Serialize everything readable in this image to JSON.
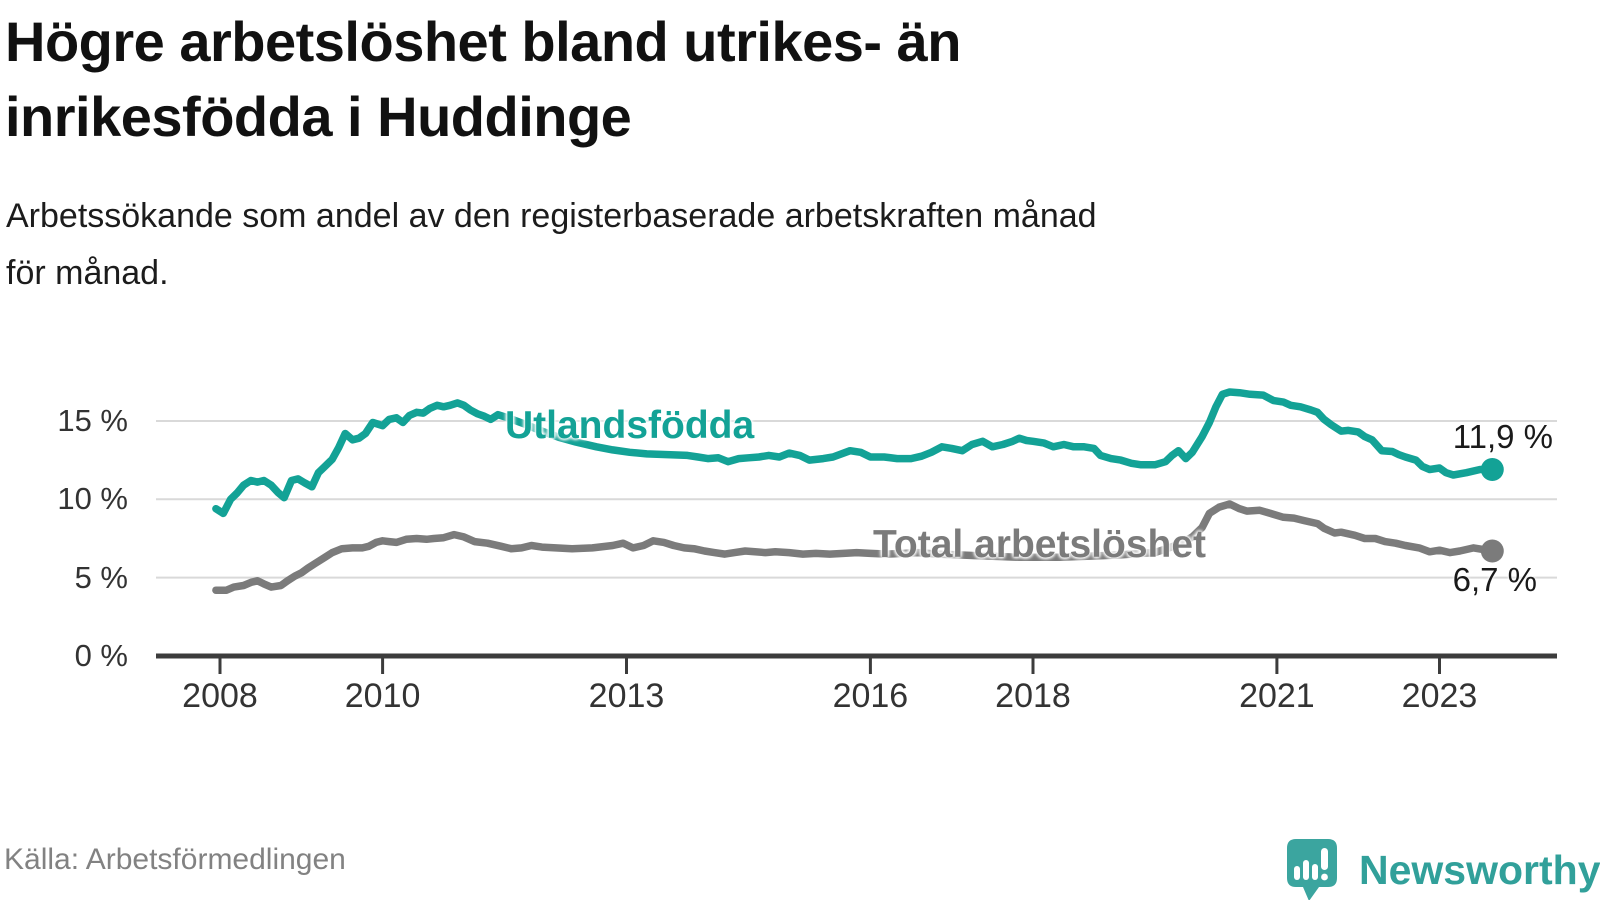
{
  "header": {
    "title_line1": "Högre arbetslöshet bland utrikes- än",
    "title_line2": "inrikesfödda i Huddinge",
    "subtitle_line1": "Arbetssökande som andel av den registerbaserade arbetskraften månad",
    "subtitle_line2": "för månad."
  },
  "footer": {
    "source": "Källa: Arbetsförmedlingen",
    "brand": "Newsworthy",
    "brand_icon": "newsworthy-speech-bubble-bar-chart",
    "brand_color": "#31a09a"
  },
  "chart_data": {
    "type": "line",
    "title": "Högre arbetslöshet bland utrikes- än inrikesfödda i Huddinge",
    "subtitle": "Arbetssökande som andel av den registerbaserade arbetskraften månad för månad.",
    "grid": "horizontal",
    "background": "#ffffff",
    "x_axis": {
      "unit": "year",
      "ticks": [
        2008,
        2010,
        2013,
        2016,
        2018,
        2021,
        2023
      ],
      "labels": [
        "2008",
        "2010",
        "2013",
        "2016",
        "2018",
        "2021",
        "2023"
      ],
      "range": [
        2007.8,
        2023.9
      ]
    },
    "y_axis": {
      "unit": "%",
      "ticks": [
        0,
        5,
        10,
        15
      ],
      "labels": [
        "0 %",
        "5 %",
        "10 %",
        "15 %"
      ],
      "range": [
        0,
        17.6
      ]
    },
    "series": [
      {
        "id": "utlandsfodda",
        "name": "Utlandsfödda",
        "color": "#13a296",
        "end_value": 11.9,
        "end_label": "11,9 %",
        "points": [
          [
            2007.95,
            9.4
          ],
          [
            2008.04,
            9.1
          ],
          [
            2008.13,
            10.0
          ],
          [
            2008.21,
            10.4
          ],
          [
            2008.29,
            10.9
          ],
          [
            2008.38,
            11.2
          ],
          [
            2008.46,
            11.1
          ],
          [
            2008.54,
            11.2
          ],
          [
            2008.63,
            10.9
          ],
          [
            2008.71,
            10.45
          ],
          [
            2008.79,
            10.1
          ],
          [
            2008.88,
            11.2
          ],
          [
            2008.96,
            11.3
          ],
          [
            2009.04,
            11.05
          ],
          [
            2009.13,
            10.8
          ],
          [
            2009.21,
            11.7
          ],
          [
            2009.29,
            12.1
          ],
          [
            2009.38,
            12.55
          ],
          [
            2009.46,
            13.3
          ],
          [
            2009.54,
            14.2
          ],
          [
            2009.63,
            13.8
          ],
          [
            2009.71,
            13.9
          ],
          [
            2009.79,
            14.2
          ],
          [
            2009.88,
            14.9
          ],
          [
            2010.0,
            14.7
          ],
          [
            2010.08,
            15.1
          ],
          [
            2010.17,
            15.2
          ],
          [
            2010.25,
            14.9
          ],
          [
            2010.33,
            15.35
          ],
          [
            2010.42,
            15.55
          ],
          [
            2010.5,
            15.5
          ],
          [
            2010.58,
            15.8
          ],
          [
            2010.67,
            16.0
          ],
          [
            2010.75,
            15.9
          ],
          [
            2010.83,
            16.0
          ],
          [
            2010.92,
            16.15
          ],
          [
            2011.0,
            16.0
          ],
          [
            2011.08,
            15.7
          ],
          [
            2011.17,
            15.45
          ],
          [
            2011.25,
            15.3
          ],
          [
            2011.33,
            15.1
          ],
          [
            2011.42,
            15.4
          ],
          [
            2011.54,
            15.2
          ],
          [
            2011.75,
            14.8
          ],
          [
            2011.96,
            14.35
          ],
          [
            2012.17,
            13.95
          ],
          [
            2012.38,
            13.65
          ],
          [
            2012.63,
            13.35
          ],
          [
            2012.83,
            13.15
          ],
          [
            2013.04,
            13.0
          ],
          [
            2013.25,
            12.9
          ],
          [
            2013.5,
            12.85
          ],
          [
            2013.75,
            12.8
          ],
          [
            2013.88,
            12.7
          ],
          [
            2014.0,
            12.6
          ],
          [
            2014.13,
            12.65
          ],
          [
            2014.25,
            12.4
          ],
          [
            2014.38,
            12.6
          ],
          [
            2014.5,
            12.65
          ],
          [
            2014.63,
            12.7
          ],
          [
            2014.75,
            12.8
          ],
          [
            2014.88,
            12.7
          ],
          [
            2015.0,
            12.95
          ],
          [
            2015.13,
            12.8
          ],
          [
            2015.25,
            12.5
          ],
          [
            2015.42,
            12.6
          ],
          [
            2015.54,
            12.7
          ],
          [
            2015.75,
            13.1
          ],
          [
            2015.88,
            13.0
          ],
          [
            2016.0,
            12.7
          ],
          [
            2016.17,
            12.7
          ],
          [
            2016.33,
            12.6
          ],
          [
            2016.5,
            12.6
          ],
          [
            2016.63,
            12.75
          ],
          [
            2016.75,
            13.0
          ],
          [
            2016.88,
            13.35
          ],
          [
            2017.0,
            13.25
          ],
          [
            2017.13,
            13.1
          ],
          [
            2017.25,
            13.5
          ],
          [
            2017.38,
            13.7
          ],
          [
            2017.5,
            13.35
          ],
          [
            2017.63,
            13.5
          ],
          [
            2017.75,
            13.7
          ],
          [
            2017.83,
            13.9
          ],
          [
            2017.92,
            13.75
          ],
          [
            2018.0,
            13.7
          ],
          [
            2018.13,
            13.6
          ],
          [
            2018.25,
            13.35
          ],
          [
            2018.38,
            13.5
          ],
          [
            2018.5,
            13.35
          ],
          [
            2018.63,
            13.35
          ],
          [
            2018.75,
            13.25
          ],
          [
            2018.83,
            12.8
          ],
          [
            2018.96,
            12.6
          ],
          [
            2019.08,
            12.5
          ],
          [
            2019.21,
            12.3
          ],
          [
            2019.33,
            12.2
          ],
          [
            2019.5,
            12.2
          ],
          [
            2019.63,
            12.4
          ],
          [
            2019.71,
            12.8
          ],
          [
            2019.79,
            13.1
          ],
          [
            2019.88,
            12.6
          ],
          [
            2019.96,
            13.0
          ],
          [
            2020.08,
            14.0
          ],
          [
            2020.17,
            14.9
          ],
          [
            2020.25,
            15.9
          ],
          [
            2020.33,
            16.7
          ],
          [
            2020.42,
            16.85
          ],
          [
            2020.54,
            16.8
          ],
          [
            2020.67,
            16.7
          ],
          [
            2020.83,
            16.65
          ],
          [
            2020.96,
            16.3
          ],
          [
            2021.08,
            16.2
          ],
          [
            2021.17,
            16.0
          ],
          [
            2021.29,
            15.9
          ],
          [
            2021.42,
            15.7
          ],
          [
            2021.5,
            15.55
          ],
          [
            2021.58,
            15.1
          ],
          [
            2021.67,
            14.75
          ],
          [
            2021.79,
            14.35
          ],
          [
            2021.88,
            14.4
          ],
          [
            2022.0,
            14.3
          ],
          [
            2022.08,
            14.0
          ],
          [
            2022.17,
            13.8
          ],
          [
            2022.29,
            13.1
          ],
          [
            2022.42,
            13.05
          ],
          [
            2022.5,
            12.85
          ],
          [
            2022.58,
            12.7
          ],
          [
            2022.71,
            12.5
          ],
          [
            2022.79,
            12.1
          ],
          [
            2022.88,
            11.9
          ],
          [
            2023.0,
            12.0
          ],
          [
            2023.08,
            11.7
          ],
          [
            2023.17,
            11.55
          ],
          [
            2023.33,
            11.7
          ],
          [
            2023.5,
            11.9
          ],
          [
            2023.65,
            11.9
          ]
        ]
      },
      {
        "id": "total-arbetsloshet",
        "name": "Total arbetslöshet",
        "color": "#7b7b7b",
        "end_value": 6.7,
        "end_label": "6,7 %",
        "points": [
          [
            2007.95,
            4.2
          ],
          [
            2008.08,
            4.2
          ],
          [
            2008.17,
            4.4
          ],
          [
            2008.29,
            4.5
          ],
          [
            2008.38,
            4.7
          ],
          [
            2008.46,
            4.8
          ],
          [
            2008.54,
            4.6
          ],
          [
            2008.63,
            4.4
          ],
          [
            2008.75,
            4.5
          ],
          [
            2008.83,
            4.8
          ],
          [
            2008.92,
            5.1
          ],
          [
            2009.0,
            5.3
          ],
          [
            2009.08,
            5.6
          ],
          [
            2009.17,
            5.9
          ],
          [
            2009.29,
            6.3
          ],
          [
            2009.38,
            6.6
          ],
          [
            2009.5,
            6.85
          ],
          [
            2009.63,
            6.9
          ],
          [
            2009.75,
            6.9
          ],
          [
            2009.83,
            7.0
          ],
          [
            2009.92,
            7.25
          ],
          [
            2010.0,
            7.35
          ],
          [
            2010.08,
            7.3
          ],
          [
            2010.17,
            7.25
          ],
          [
            2010.29,
            7.45
          ],
          [
            2010.42,
            7.5
          ],
          [
            2010.54,
            7.45
          ],
          [
            2010.63,
            7.5
          ],
          [
            2010.75,
            7.55
          ],
          [
            2010.88,
            7.75
          ],
          [
            2011.0,
            7.6
          ],
          [
            2011.13,
            7.3
          ],
          [
            2011.29,
            7.2
          ],
          [
            2011.46,
            7.0
          ],
          [
            2011.58,
            6.85
          ],
          [
            2011.71,
            6.9
          ],
          [
            2011.83,
            7.05
          ],
          [
            2011.96,
            6.95
          ],
          [
            2012.13,
            6.9
          ],
          [
            2012.33,
            6.85
          ],
          [
            2012.58,
            6.9
          ],
          [
            2012.83,
            7.05
          ],
          [
            2012.96,
            7.2
          ],
          [
            2013.08,
            6.9
          ],
          [
            2013.21,
            7.05
          ],
          [
            2013.33,
            7.35
          ],
          [
            2013.46,
            7.25
          ],
          [
            2013.58,
            7.05
          ],
          [
            2013.71,
            6.9
          ],
          [
            2013.83,
            6.85
          ],
          [
            2013.96,
            6.7
          ],
          [
            2014.08,
            6.6
          ],
          [
            2014.21,
            6.5
          ],
          [
            2014.33,
            6.6
          ],
          [
            2014.46,
            6.7
          ],
          [
            2014.58,
            6.65
          ],
          [
            2014.71,
            6.6
          ],
          [
            2014.83,
            6.65
          ],
          [
            2015.0,
            6.6
          ],
          [
            2015.17,
            6.5
          ],
          [
            2015.33,
            6.55
          ],
          [
            2015.5,
            6.5
          ],
          [
            2015.67,
            6.55
          ],
          [
            2015.83,
            6.6
          ],
          [
            2016.0,
            6.55
          ],
          [
            2016.21,
            6.5
          ],
          [
            2016.42,
            6.55
          ],
          [
            2016.58,
            6.6
          ],
          [
            2016.83,
            6.5
          ],
          [
            2017.08,
            6.45
          ],
          [
            2017.33,
            6.4
          ],
          [
            2017.58,
            6.35
          ],
          [
            2017.83,
            6.3
          ],
          [
            2018.08,
            6.3
          ],
          [
            2018.33,
            6.3
          ],
          [
            2018.58,
            6.35
          ],
          [
            2018.83,
            6.4
          ],
          [
            2019.08,
            6.45
          ],
          [
            2019.33,
            6.55
          ],
          [
            2019.5,
            6.6
          ],
          [
            2019.67,
            6.9
          ],
          [
            2019.83,
            7.2
          ],
          [
            2019.96,
            7.6
          ],
          [
            2020.08,
            8.2
          ],
          [
            2020.17,
            9.1
          ],
          [
            2020.29,
            9.5
          ],
          [
            2020.42,
            9.7
          ],
          [
            2020.54,
            9.4
          ],
          [
            2020.63,
            9.25
          ],
          [
            2020.79,
            9.3
          ],
          [
            2020.92,
            9.1
          ],
          [
            2021.08,
            8.85
          ],
          [
            2021.21,
            8.8
          ],
          [
            2021.33,
            8.65
          ],
          [
            2021.5,
            8.45
          ],
          [
            2021.58,
            8.15
          ],
          [
            2021.71,
            7.85
          ],
          [
            2021.79,
            7.9
          ],
          [
            2021.96,
            7.7
          ],
          [
            2022.08,
            7.5
          ],
          [
            2022.21,
            7.5
          ],
          [
            2022.33,
            7.3
          ],
          [
            2022.46,
            7.2
          ],
          [
            2022.58,
            7.05
          ],
          [
            2022.75,
            6.9
          ],
          [
            2022.88,
            6.65
          ],
          [
            2023.0,
            6.75
          ],
          [
            2023.13,
            6.6
          ],
          [
            2023.25,
            6.7
          ],
          [
            2023.42,
            6.9
          ],
          [
            2023.65,
            6.7
          ]
        ]
      }
    ],
    "colors": {
      "axis": "#3c3c3c",
      "grid": "#d9d9d9",
      "tick_label": "#333333",
      "end_label": "#1a1a1a"
    }
  }
}
